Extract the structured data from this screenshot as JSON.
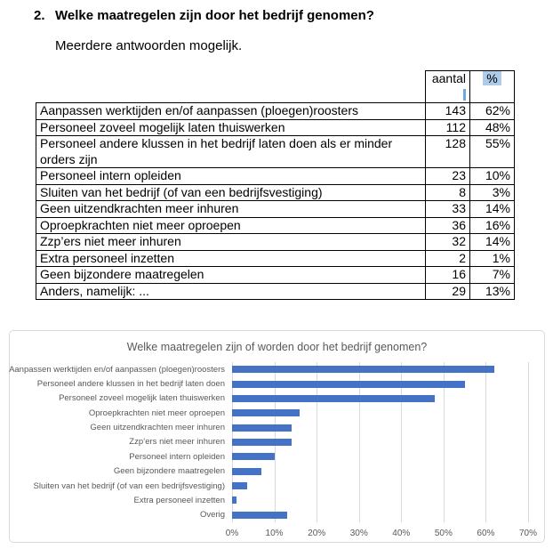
{
  "page": {
    "heading_number": "2.",
    "heading": "Welke maatregelen zijn door het bedrijf genomen?",
    "subtitle": "Meerdere antwoorden mogelijk."
  },
  "table": {
    "headers": {
      "aantal": "aantal",
      "percent": "%"
    },
    "rows": [
      {
        "label": "Aanpassen werktijden en/of aanpassen (ploegen)roosters",
        "aantal": "143",
        "pct": "62%"
      },
      {
        "label": "Personeel zoveel mogelijk laten thuiswerken",
        "aantal": "112",
        "pct": "48%"
      },
      {
        "label": "Personeel andere klussen in het bedrijf laten doen als er minder orders zijn",
        "aantal": "128",
        "pct": "55%"
      },
      {
        "label": "Personeel intern opleiden",
        "aantal": "23",
        "pct": "10%"
      },
      {
        "label": "Sluiten van het bedrijf (of van een bedrijfsvestiging)",
        "aantal": "8",
        "pct": "3%"
      },
      {
        "label": "Geen uitzendkrachten meer inhuren",
        "aantal": "33",
        "pct": "14%"
      },
      {
        "label": "Oproepkrachten niet meer oproepen",
        "aantal": "36",
        "pct": "16%"
      },
      {
        "label": "Zzp’ers niet meer inhuren",
        "aantal": "32",
        "pct": "14%"
      },
      {
        "label": "Extra personeel inzetten",
        "aantal": "2",
        "pct": "1%"
      },
      {
        "label": "Geen bijzondere maatregelen",
        "aantal": "16",
        "pct": "7%"
      },
      {
        "label": "Anders, namelijk: ...",
        "aantal": "29",
        "pct": "13%"
      }
    ],
    "highlight_color": "#AECBE8",
    "sliver_color": "#6FA8DC"
  },
  "chart_data": {
    "type": "bar",
    "orientation": "horizontal",
    "title": "Welke maatregelen zijn of worden door het bedrijf genomen?",
    "categories": [
      "Aanpassen werktijden en/of aanpassen (ploegen)roosters",
      "Personeel andere klussen in het bedrijf laten doen",
      "Personeel zoveel mogelijk laten thuiswerken",
      "Oproepkrachten niet meer oproepen",
      "Geen uitzendkrachten meer inhuren",
      "Zzp’ers niet meer inhuren",
      "Personeel intern opleiden",
      "Geen bijzondere maatregelen",
      "Sluiten van het bedrijf (of van een bedrijfsvestiging)",
      "Extra personeel inzetten",
      "Overig"
    ],
    "values": [
      62,
      55,
      48,
      16,
      14,
      14,
      10,
      7,
      3.5,
      1,
      13
    ],
    "x_ticks": [
      "0%",
      "10%",
      "20%",
      "30%",
      "40%",
      "50%",
      "60%",
      "70%"
    ],
    "xlim": [
      0,
      70
    ],
    "grid": true,
    "legend": false,
    "bar_color": "#4472C4",
    "gridline_color": "#D9D9D9",
    "text_color": "#595959"
  }
}
